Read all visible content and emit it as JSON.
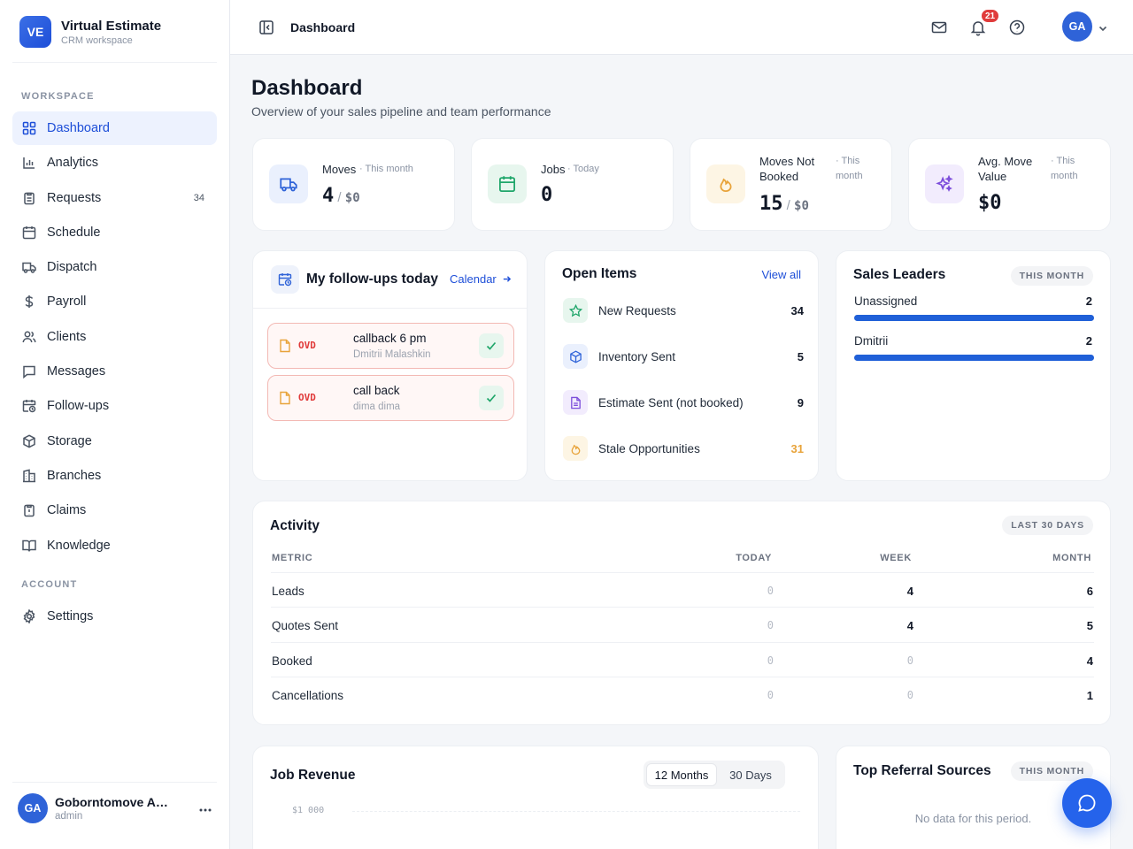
{
  "brand": {
    "logo": "VE",
    "name": "Virtual Estimate",
    "subtitle": "CRM workspace"
  },
  "sidebar": {
    "workspace_label": "WORKSPACE",
    "items": [
      {
        "label": "Dashboard",
        "icon": "grid-icon",
        "active": true
      },
      {
        "label": "Analytics",
        "icon": "bar-chart-icon"
      },
      {
        "label": "Requests",
        "icon": "clipboard-icon",
        "badge": "34"
      },
      {
        "label": "Schedule",
        "icon": "calendar-icon"
      },
      {
        "label": "Dispatch",
        "icon": "truck-icon"
      },
      {
        "label": "Payroll",
        "icon": "dollar-icon"
      },
      {
        "label": "Clients",
        "icon": "users-icon"
      },
      {
        "label": "Messages",
        "icon": "message-icon"
      },
      {
        "label": "Follow-ups",
        "icon": "calendar-clock-icon"
      },
      {
        "label": "Storage",
        "icon": "box-icon"
      },
      {
        "label": "Branches",
        "icon": "building-icon"
      },
      {
        "label": "Claims",
        "icon": "alert-clipboard-icon"
      },
      {
        "label": "Knowledge",
        "icon": "book-icon"
      }
    ],
    "account_label": "ACCOUNT",
    "account_items": [
      {
        "label": "Settings",
        "icon": "gear-icon"
      }
    ],
    "user": {
      "initials": "GA",
      "name": "Goborntomove Admin",
      "role": "admin"
    }
  },
  "topbar": {
    "title": "Dashboard",
    "notifications": "21",
    "avatar": "GA"
  },
  "page": {
    "title": "Dashboard",
    "subtitle": "Overview of your sales pipeline and team performance"
  },
  "stats": [
    {
      "label": "Moves",
      "period": "· This month",
      "value": "4",
      "money": "$0"
    },
    {
      "label": "Jobs",
      "period": "· Today",
      "value": "0"
    },
    {
      "label": "Moves Not Booked",
      "period": "· This month",
      "value": "15",
      "money": "$0"
    },
    {
      "label": "Avg. Move Value",
      "period": "· This month",
      "value": "$0"
    }
  ],
  "followups": {
    "title": "My follow-ups today",
    "link": "Calendar",
    "items": [
      {
        "tag": "OVD",
        "title": "callback 6 pm",
        "subtitle": "Dmitrii Malashkin"
      },
      {
        "tag": "OVD",
        "title": "call back",
        "subtitle": "dima dima"
      }
    ]
  },
  "open_items": {
    "title": "Open Items",
    "link": "View all",
    "rows": [
      {
        "label": "New Requests",
        "count": "34"
      },
      {
        "label": "Inventory Sent",
        "count": "5"
      },
      {
        "label": "Estimate Sent (not booked)",
        "count": "9"
      },
      {
        "label": "Stale Opportunities",
        "count": "31"
      }
    ]
  },
  "sales_leaders": {
    "title": "Sales Leaders",
    "period": "THIS MONTH",
    "rows": [
      {
        "name": "Unassigned",
        "value": "2",
        "share": 1.0
      },
      {
        "name": "Dmitrii",
        "value": "2",
        "share": 1.0
      }
    ]
  },
  "activity": {
    "title": "Activity",
    "period": "LAST 30 DAYS",
    "headers": {
      "metric": "METRIC",
      "today": "TODAY",
      "week": "WEEK",
      "month": "MONTH"
    },
    "rows": [
      {
        "metric": "Leads",
        "today": "0",
        "week": "4",
        "month": "6"
      },
      {
        "metric": "Quotes Sent",
        "today": "0",
        "week": "4",
        "month": "5"
      },
      {
        "metric": "Booked",
        "today": "0",
        "week": "0",
        "month": "4"
      },
      {
        "metric": "Cancellations",
        "today": "0",
        "week": "0",
        "month": "1"
      }
    ]
  },
  "revenue": {
    "title": "Job Revenue",
    "tabs": [
      "12 Months",
      "30 Days"
    ],
    "axis_top": "$1 000"
  },
  "referrals": {
    "title": "Top Referral Sources",
    "period": "THIS MONTH",
    "empty": "No data for this period."
  },
  "colors": {
    "accent": "#1d4ed8",
    "danger": "#e03b3b",
    "success": "#1fa66a",
    "warning": "#e8a33a"
  }
}
